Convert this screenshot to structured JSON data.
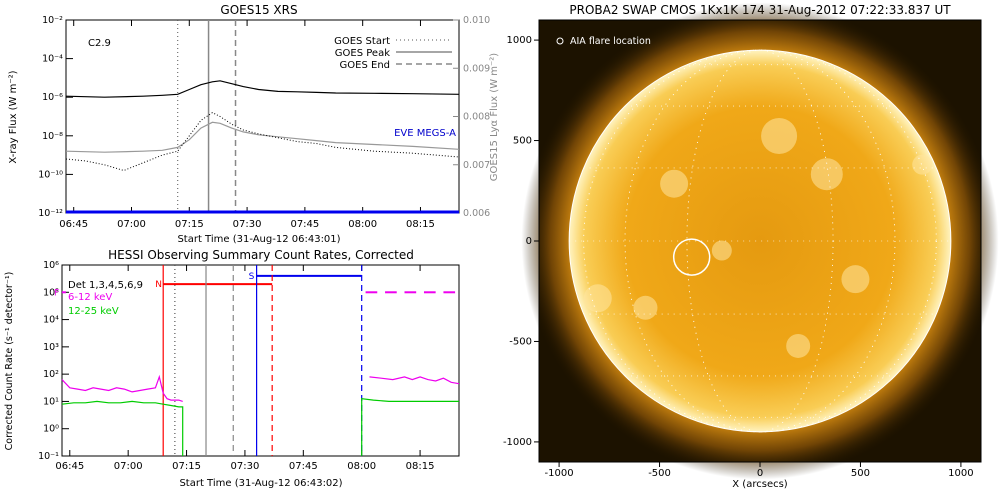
{
  "chart_data": [
    {
      "type": "line",
      "title": "GOES15 XRS",
      "xlabel": "Start Time (31-Aug-12 06:43:01)",
      "ylabel": "X-ray Flux (W m⁻²)",
      "y2label": "GOES15 Lyα Flux (W m⁻²)",
      "x_ticks": [
        "06:45",
        "07:00",
        "07:15",
        "07:30",
        "07:45",
        "08:00",
        "08:15"
      ],
      "xlim_minutes_since_0643": [
        0,
        102
      ],
      "y_ticks": [
        "10⁻²",
        "10⁻⁴",
        "10⁻⁶",
        "10⁻⁸",
        "10⁻¹⁰",
        "10⁻¹²"
      ],
      "ylim_log10": [
        -12,
        -2
      ],
      "y2_ticks": [
        "0.010",
        "0.009",
        "0.008",
        "0.007",
        "0.006"
      ],
      "y2lim": [
        0.006,
        0.01
      ],
      "annotation": "C2.9",
      "legend": [
        {
          "label": "GOES Start",
          "style": "dotted",
          "color": "#555555"
        },
        {
          "label": "GOES Peak",
          "style": "solid",
          "color": "#888888"
        },
        {
          "label": "GOES End",
          "style": "dashed",
          "color": "#888888"
        }
      ],
      "legend_placement": "top-right",
      "vertical_markers_minutes": {
        "start": 29,
        "peak": 37,
        "end": 44
      },
      "series": [
        {
          "style": "solid",
          "color": "#000000",
          "x": [
            0,
            10,
            20,
            25,
            29,
            32,
            35,
            38,
            40,
            43,
            46,
            50,
            55,
            60,
            65,
            70,
            80,
            90,
            102
          ],
          "log10_y": [
            -5.95,
            -6.0,
            -5.95,
            -5.9,
            -5.85,
            -5.6,
            -5.35,
            -5.2,
            -5.15,
            -5.3,
            -5.45,
            -5.6,
            -5.7,
            -5.72,
            -5.75,
            -5.78,
            -5.8,
            -5.82,
            -5.85
          ]
        },
        {
          "style": "solid",
          "color": "#999999",
          "x": [
            0,
            10,
            20,
            25,
            29,
            32,
            35,
            38,
            40,
            43,
            46,
            50,
            55,
            60,
            65,
            70,
            80,
            90,
            102
          ],
          "log10_y": [
            -8.8,
            -8.85,
            -8.8,
            -8.75,
            -8.6,
            -8.2,
            -7.6,
            -7.3,
            -7.35,
            -7.6,
            -7.8,
            -7.95,
            -8.05,
            -8.15,
            -8.25,
            -8.35,
            -8.45,
            -8.55,
            -8.7
          ]
        },
        {
          "style": "dotted",
          "color": "#000000",
          "x": [
            0,
            5,
            10,
            15,
            20,
            25,
            29,
            32,
            35,
            38,
            40,
            43,
            46,
            50,
            55,
            60,
            65,
            70,
            80,
            90,
            102
          ],
          "log10_y": [
            -9.2,
            -9.3,
            -9.5,
            -9.8,
            -9.4,
            -9.0,
            -8.8,
            -8.0,
            -7.2,
            -6.8,
            -7.0,
            -7.4,
            -7.7,
            -7.9,
            -8.1,
            -8.3,
            -8.4,
            -8.6,
            -8.8,
            -8.9,
            -9.1
          ]
        },
        {
          "style": "solid",
          "color": "#0000ee",
          "x": [
            0,
            102
          ],
          "log10_y": [
            -11.95,
            -11.95
          ]
        }
      ],
      "series_label": "EVE MEGS-A"
    },
    {
      "type": "line",
      "title": "HESSI Observing Summary Count Rates, Corrected",
      "xlabel": "Start Time (31-Aug-12 06:43:02)",
      "ylabel": "Corrected Count Rate (s⁻¹ detector⁻¹)",
      "x_ticks": [
        "06:45",
        "07:00",
        "07:15",
        "07:30",
        "07:45",
        "08:00",
        "08:15"
      ],
      "xlim_minutes_since_0643": [
        0,
        102
      ],
      "y_ticks": [
        "10⁶",
        "10⁵",
        "10⁴",
        "10³",
        "10²",
        "10¹",
        "10⁰",
        "10⁻¹"
      ],
      "ylim_log10": [
        -1,
        6
      ],
      "legend": [
        {
          "label": "Det 1,3,4,5,6,9",
          "color": "#000000"
        },
        {
          "label": "6-12 keV",
          "color": "#ee00ee"
        },
        {
          "label": "12-25 keV",
          "color": "#00cc00"
        }
      ],
      "legend_placement": "top-left",
      "flags": [
        {
          "label": "F",
          "color": "#ee00ee",
          "x_start": 0,
          "x_end": 1,
          "log10_y": 5.0
        },
        {
          "label": "N",
          "color": "#ff0000",
          "x_start": 26,
          "x_end": 54,
          "log10_y": 5.3
        },
        {
          "label": "S",
          "color": "#0000ee",
          "x_start": 50,
          "x_end": 77,
          "log10_y": 5.6
        }
      ],
      "magenta_dashes_after_minutes": [
        78,
        102
      ],
      "vertical_markers_minutes": [
        {
          "x": 26,
          "color": "#ff0000",
          "style": "solid"
        },
        {
          "x": 29,
          "color": "#555555",
          "style": "dotted"
        },
        {
          "x": 37,
          "color": "#888888",
          "style": "solid"
        },
        {
          "x": 44,
          "color": "#888888",
          "style": "dashed"
        },
        {
          "x": 50,
          "color": "#0000ee",
          "style": "solid"
        },
        {
          "x": 54,
          "color": "#ff0000",
          "style": "dashed"
        },
        {
          "x": 77,
          "color": "#0000ee",
          "style": "dashed"
        }
      ],
      "series": [
        {
          "color": "#ee00ee",
          "x": [
            0,
            2,
            4,
            6,
            8,
            10,
            12,
            14,
            16,
            18,
            20,
            22,
            24,
            25,
            26,
            27,
            28,
            30,
            31
          ],
          "log10_y": [
            1.8,
            1.5,
            1.45,
            1.4,
            1.5,
            1.45,
            1.4,
            1.5,
            1.45,
            1.35,
            1.4,
            1.45,
            1.5,
            1.9,
            1.3,
            1.1,
            1.05,
            1.05,
            1.0
          ],
          "gap_then": {
            "x": [
              79,
              82,
              85,
              88,
              90,
              92,
              94,
              96,
              98,
              100,
              102
            ],
            "log10_y": [
              1.9,
              1.85,
              1.8,
              1.9,
              1.8,
              1.9,
              1.8,
              1.75,
              1.85,
              1.7,
              1.65
            ]
          }
        },
        {
          "color": "#00cc00",
          "x": [
            0,
            3,
            6,
            9,
            12,
            15,
            18,
            21,
            24,
            26,
            28,
            30,
            31
          ],
          "log10_y": [
            0.9,
            0.95,
            0.95,
            1.0,
            0.95,
            0.95,
            1.0,
            0.95,
            0.95,
            0.9,
            0.85,
            0.8,
            0.8
          ],
          "drops_to_floor_at": [
            26,
            31
          ],
          "gap_then": {
            "x": [
              77,
              80,
              84,
              88,
              92,
              96,
              100,
              102
            ],
            "log10_y": [
              1.1,
              1.05,
              1.0,
              1.0,
              1.0,
              1.0,
              1.0,
              1.0
            ]
          }
        }
      ]
    },
    {
      "type": "image",
      "title": "PROBA2 SWAP CMOS 1Kx1K 174 31-Aug-2012 07:22:33.837 UT",
      "xlabel": "X (arcsecs)",
      "ylabel": "",
      "x_ticks": [
        "-1000",
        "-500",
        "0",
        "500",
        "1000"
      ],
      "y_ticks": [
        "1000",
        "500",
        "0",
        "-500",
        "-1000"
      ],
      "xlim": [
        -1100,
        1100
      ],
      "ylim": [
        -1100,
        1100
      ],
      "annotation": "AIA flare location",
      "solar_radius_arcsec": 950,
      "flare_location_arcsec": [
        -340,
        -80
      ],
      "colors": {
        "disk": "#f3b020",
        "limb": "#fff7d0",
        "bg": "#1c1200"
      }
    }
  ]
}
